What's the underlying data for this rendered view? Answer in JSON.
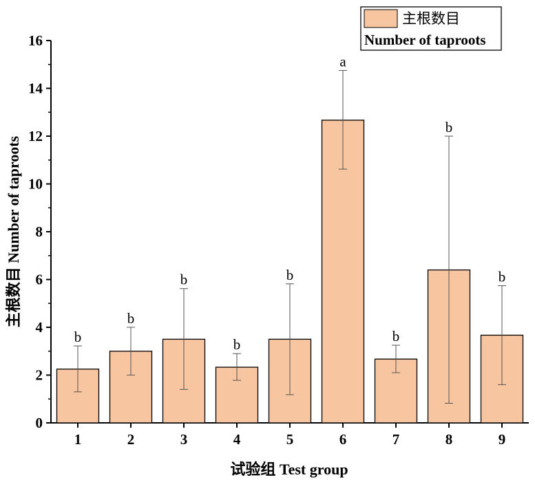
{
  "chart_data": {
    "type": "bar",
    "categories": [
      "1",
      "2",
      "3",
      "4",
      "5",
      "6",
      "7",
      "8",
      "9"
    ],
    "series": [
      {
        "name": "主根数目 Number of taproots",
        "values": [
          2.25,
          3.0,
          3.5,
          2.33,
          3.5,
          12.67,
          2.67,
          6.4,
          3.67
        ],
        "error_low": [
          1.3,
          2.0,
          1.4,
          1.78,
          1.18,
          10.62,
          2.1,
          0.82,
          1.6
        ],
        "error_high": [
          3.22,
          4.0,
          5.62,
          2.9,
          5.82,
          14.75,
          3.25,
          12.0,
          5.74
        ],
        "significance": [
          "b",
          "b",
          "b",
          "b",
          "b",
          "a",
          "b",
          "b",
          "b"
        ]
      }
    ],
    "xlabel": "试验组 Test group",
    "ylabel": "主根数目 Number of taproots",
    "ylim": [
      0,
      16
    ],
    "yticks": [
      0,
      2,
      4,
      6,
      8,
      10,
      12,
      14,
      16
    ],
    "legend": {
      "placement": "top-right",
      "label_cn": "主根数目",
      "label_en": "Number of taproots"
    },
    "grid": false,
    "colors": {
      "bar_fill": "#f7c59f",
      "bar_edge": "#000000",
      "error_bar": "#555555"
    }
  }
}
